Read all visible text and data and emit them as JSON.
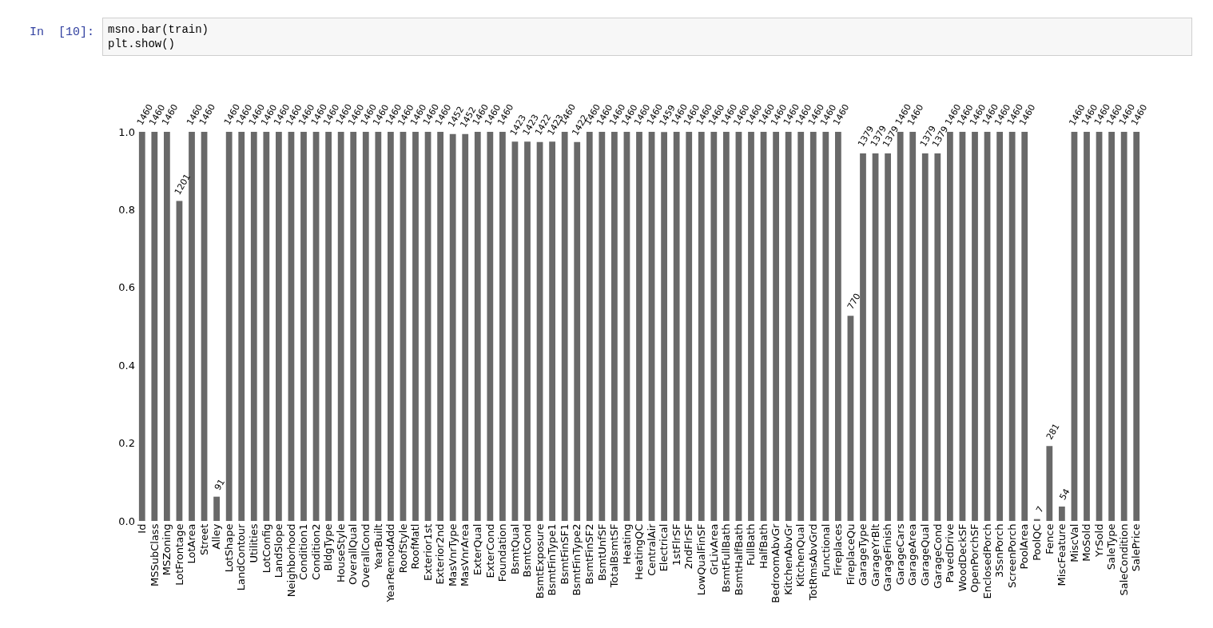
{
  "chart_data": {
    "type": "bar",
    "categories": [
      "Id",
      "MSSubClass",
      "MSZoning",
      "LotFrontage",
      "LotArea",
      "Street",
      "Alley",
      "LotShape",
      "LandContour",
      "Utilities",
      "LotConfig",
      "LandSlope",
      "Neighborhood",
      "Condition1",
      "Condition2",
      "BldgType",
      "HouseStyle",
      "OverallQual",
      "OverallCond",
      "YearBuilt",
      "YearRemodAdd",
      "RoofStyle",
      "RoofMatl",
      "Exterior1st",
      "Exterior2nd",
      "MasVnrType",
      "MasVnrArea",
      "ExterQual",
      "ExterCond",
      "Foundation",
      "BsmtQual",
      "BsmtCond",
      "BsmtExposure",
      "BsmtFinType1",
      "BsmtFinSF1",
      "BsmtFinType2",
      "BsmtFinSF2",
      "BsmtUnfSF",
      "TotalBsmtSF",
      "Heating",
      "HeatingQC",
      "CentralAir",
      "Electrical",
      "1stFlrSF",
      "2ndFlrSF",
      "LowQualFinSF",
      "GrLivArea",
      "BsmtFullBath",
      "BsmtHalfBath",
      "FullBath",
      "HalfBath",
      "BedroomAbvGr",
      "KitchenAbvGr",
      "KitchenQual",
      "TotRmsAbvGrd",
      "Functional",
      "Fireplaces",
      "FireplaceQu",
      "GarageType",
      "GarageYrBlt",
      "GarageFinish",
      "GarageCars",
      "GarageArea",
      "GarageQual",
      "GarageCond",
      "PavedDrive",
      "WoodDeckSF",
      "OpenPorchSF",
      "EnclosedPorch",
      "3SsnPorch",
      "ScreenPorch",
      "PoolArea",
      "PoolQC",
      "Fence",
      "MiscFeature",
      "MiscVal",
      "MoSold",
      "YrSold",
      "SaleType",
      "SaleCondition",
      "SalePrice"
    ],
    "series": [
      {
        "axis": "y2",
        "color": "#696969",
        "values": [
          1460,
          1460,
          1460,
          1201,
          1460,
          1460,
          91,
          1460,
          1460,
          1460,
          1460,
          1460,
          1460,
          1460,
          1460,
          1460,
          1460,
          1460,
          1460,
          1460,
          1460,
          1460,
          1460,
          1460,
          1460,
          1452,
          1452,
          1460,
          1460,
          1460,
          1423,
          1423,
          1422,
          1423,
          1460,
          1422,
          1460,
          1460,
          1460,
          1460,
          1460,
          1460,
          1459,
          1460,
          1460,
          1460,
          1460,
          1460,
          1460,
          1460,
          1460,
          1460,
          1460,
          1460,
          1460,
          1460,
          1460,
          770,
          1379,
          1379,
          1379,
          1460,
          1460,
          1379,
          1379,
          1460,
          1460,
          1460,
          1460,
          1460,
          1460,
          1460,
          7,
          281,
          54,
          1460,
          1460,
          1460,
          1460,
          1460,
          1460
        ]
      }
    ],
    "data_labels": true,
    "y2lim": [
      0,
      1460
    ],
    "ylim": [
      0,
      1.0
    ],
    "yticks": [
      {
        "value": 0,
        "label": "0.0"
      },
      {
        "value": 0.2,
        "label": "0.2"
      },
      {
        "value": 0.4,
        "label": "0.4"
      },
      {
        "value": 0.6,
        "label": "0.6"
      },
      {
        "value": 0.8,
        "label": "0.8"
      },
      {
        "value": 1.0,
        "label": "1.0"
      }
    ],
    "annotations": [
      "In  [10]:",
      "msno.bar(train)\nplt.show()"
    ]
  }
}
